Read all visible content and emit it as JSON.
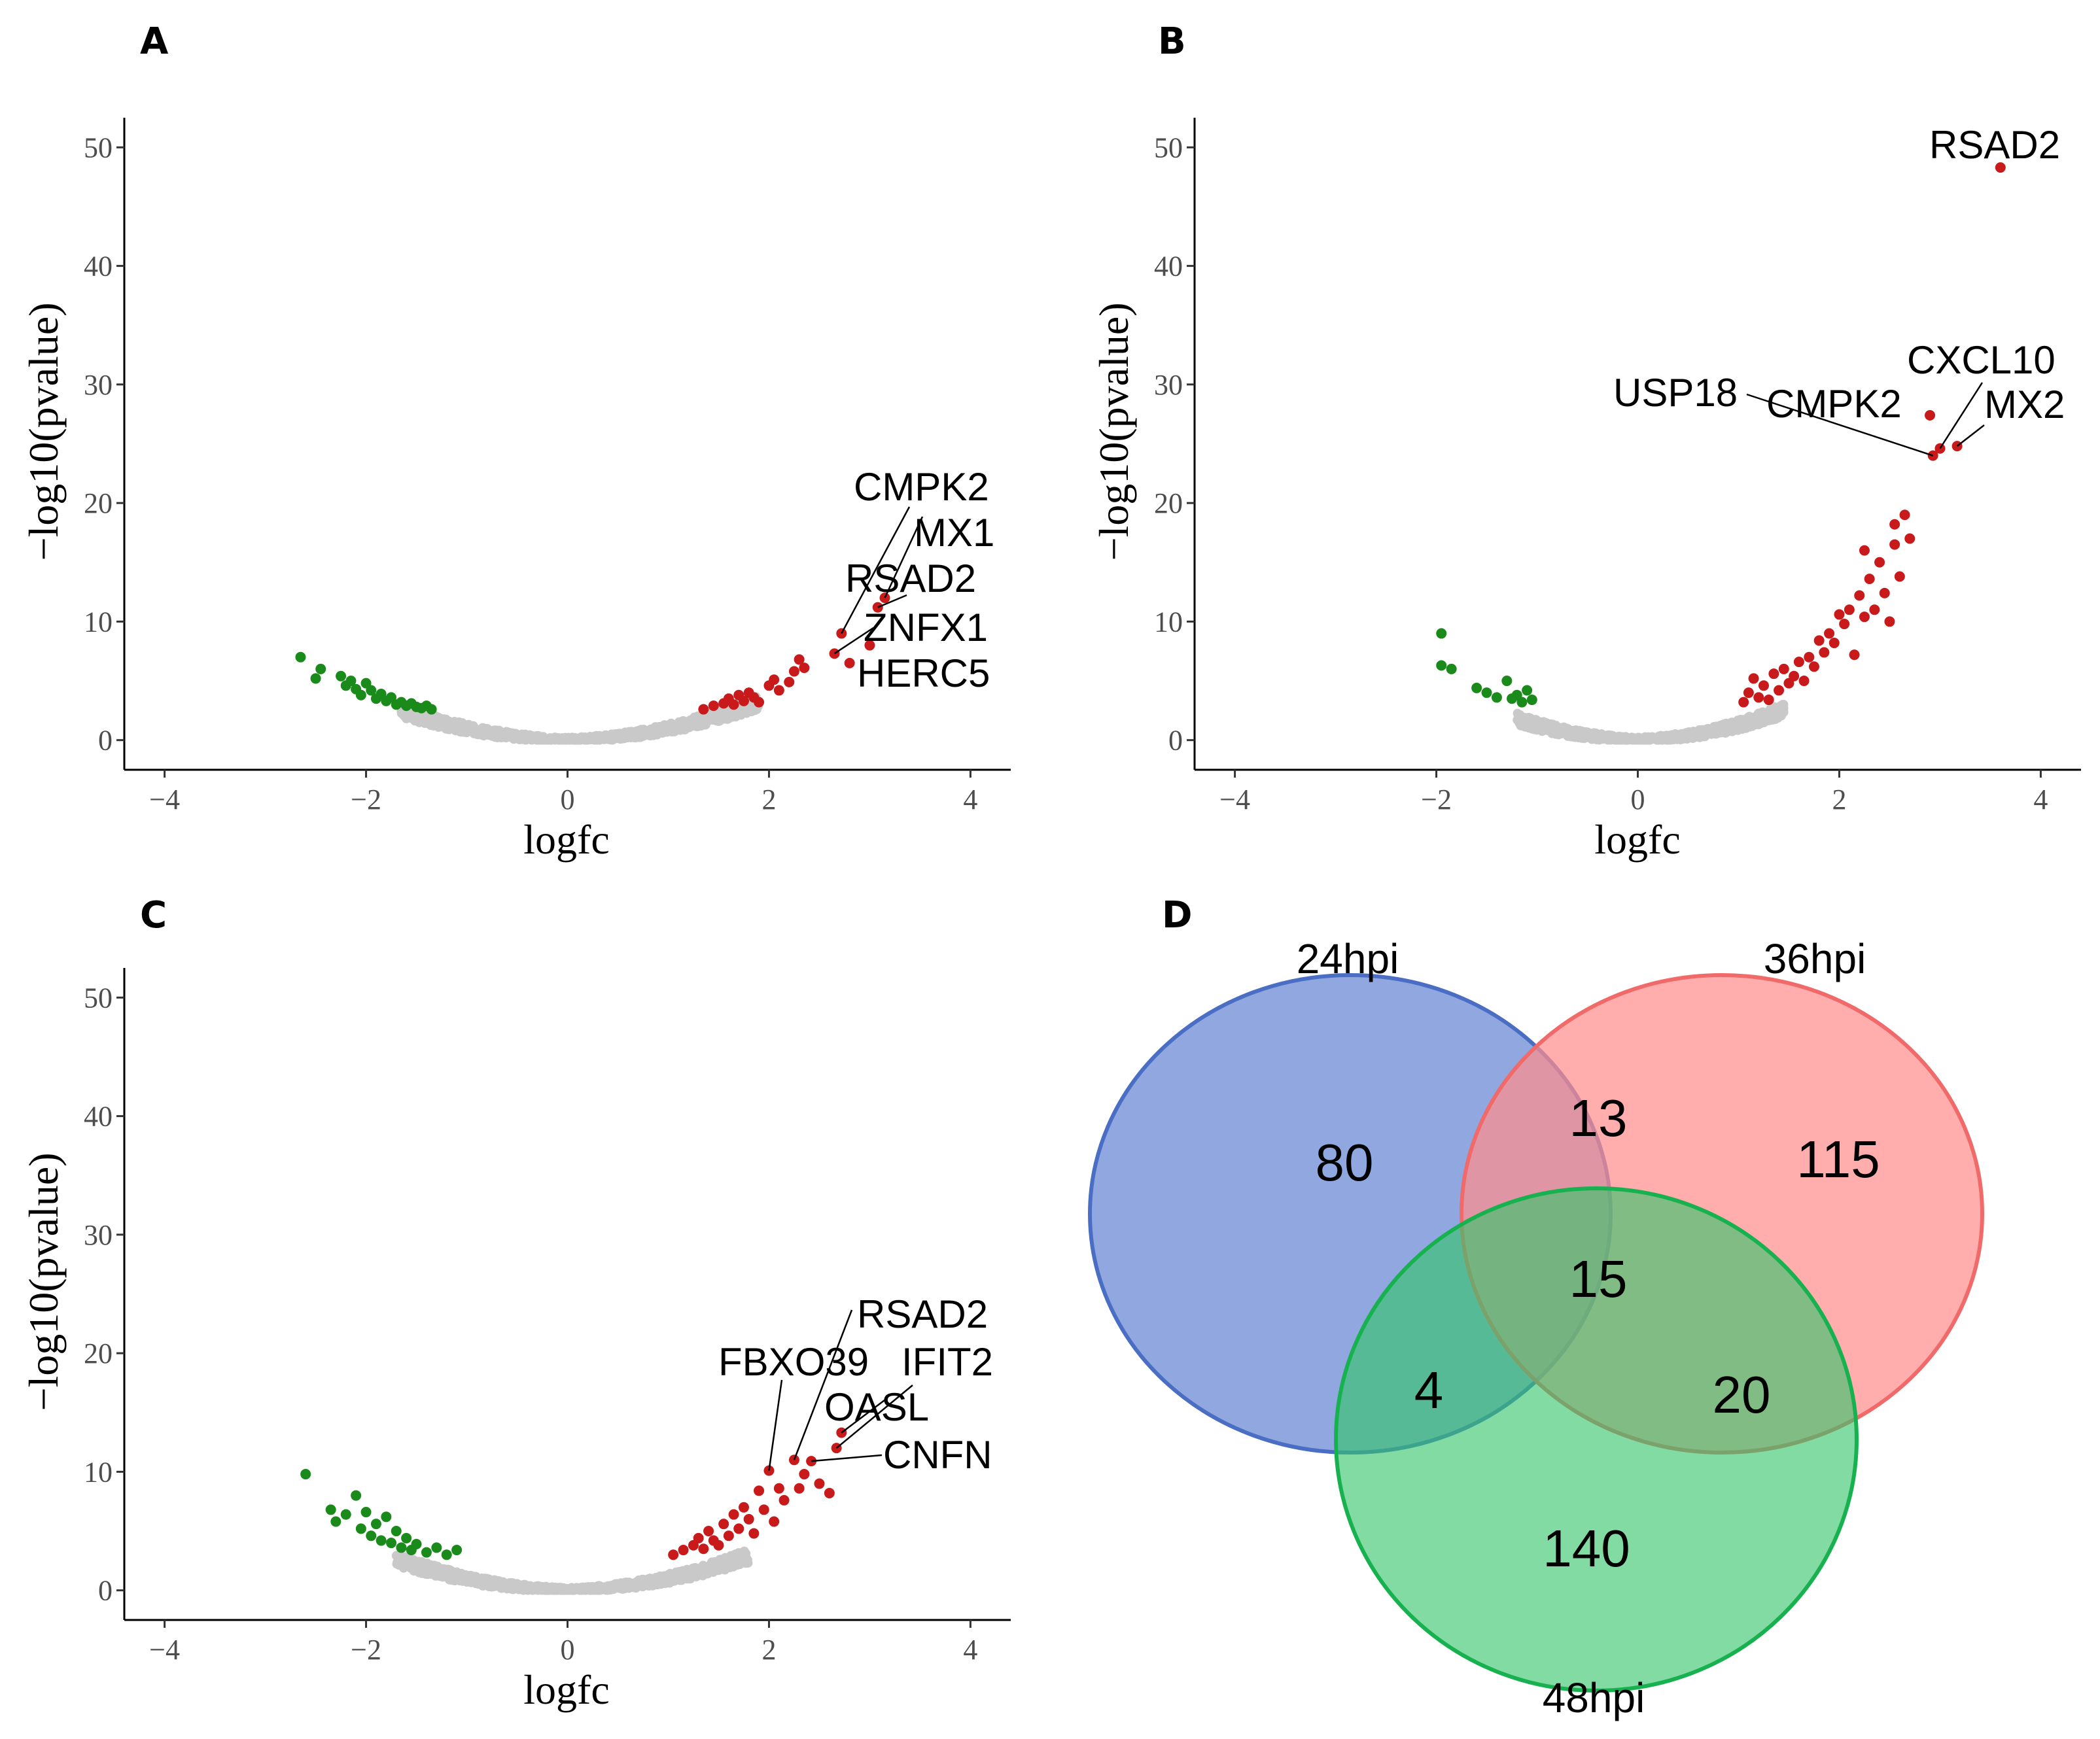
{
  "chart_data": [
    {
      "panel": "A",
      "type": "scatter",
      "title": "",
      "xlabel": "logfc",
      "ylabel": "−log10(pvalue)",
      "xlim": [
        -4.4,
        4.4
      ],
      "ylim": [
        -2.5,
        52.5
      ],
      "xticks": [
        -4,
        -2,
        0,
        2,
        4
      ],
      "yticks": [
        0,
        10,
        20,
        30,
        40,
        50
      ],
      "xtick_labels": [
        "−4",
        "−2",
        "0",
        "2",
        "4"
      ],
      "ytick_labels": [
        "0",
        "10",
        "20",
        "30",
        "40",
        "50"
      ],
      "cloud": {
        "xmin": -1.65,
        "xmax": 1.9,
        "k": 1.5,
        "spread": 0.8
      },
      "series": [
        {
          "name": "down",
          "color": "#1a8a1a",
          "points": [
            [
              -2.65,
              7.0
            ],
            [
              -2.5,
              5.2
            ],
            [
              -2.45,
              6.0
            ],
            [
              -2.25,
              5.4
            ],
            [
              -2.2,
              4.6
            ],
            [
              -2.15,
              5.0
            ],
            [
              -2.1,
              4.3
            ],
            [
              -2.05,
              3.8
            ],
            [
              -2.0,
              4.8
            ],
            [
              -1.95,
              4.2
            ],
            [
              -1.9,
              3.5
            ],
            [
              -1.85,
              3.9
            ],
            [
              -1.8,
              3.3
            ],
            [
              -1.75,
              3.6
            ],
            [
              -1.7,
              3.0
            ],
            [
              -1.65,
              3.2
            ],
            [
              -1.6,
              2.9
            ],
            [
              -1.55,
              3.1
            ],
            [
              -1.5,
              2.8
            ],
            [
              -1.45,
              2.7
            ],
            [
              -1.4,
              2.9
            ],
            [
              -1.35,
              2.6
            ]
          ]
        },
        {
          "name": "up",
          "color": "#c8191b",
          "points": [
            [
              1.35,
              2.6
            ],
            [
              1.45,
              2.9
            ],
            [
              1.55,
              3.1
            ],
            [
              1.6,
              3.5
            ],
            [
              1.65,
              3.0
            ],
            [
              1.7,
              3.8
            ],
            [
              1.75,
              3.3
            ],
            [
              1.8,
              4.0
            ],
            [
              1.85,
              3.6
            ],
            [
              1.9,
              3.2
            ],
            [
              2.0,
              4.6
            ],
            [
              2.05,
              5.1
            ],
            [
              2.1,
              4.2
            ],
            [
              2.2,
              4.9
            ],
            [
              2.25,
              5.8
            ],
            [
              2.3,
              6.8
            ],
            [
              2.35,
              6.1
            ],
            [
              2.65,
              7.3
            ],
            [
              2.72,
              9.0
            ],
            [
              2.8,
              6.5
            ],
            [
              3.0,
              8.0
            ],
            [
              3.08,
              11.2
            ],
            [
              3.15,
              12.0
            ]
          ]
        }
      ],
      "annotations": [
        {
          "label": "CMPK2",
          "x": 2.72,
          "y": 9.0
        },
        {
          "label": "MX1",
          "x": 3.15,
          "y": 12.0
        },
        {
          "label": "RSAD2",
          "x": 3.08,
          "y": 11.2
        },
        {
          "label": "ZNFX1",
          "x": 2.65,
          "y": 7.3
        },
        {
          "label": "HERC5",
          "x": 3.0,
          "y": 8.0
        }
      ]
    },
    {
      "panel": "B",
      "type": "scatter",
      "title": "",
      "xlabel": "logfc",
      "ylabel": "−log10(pvalue)",
      "xlim": [
        -4.4,
        4.4
      ],
      "ylim": [
        -2.5,
        52.5
      ],
      "xticks": [
        -4,
        -2,
        0,
        2,
        4
      ],
      "yticks": [
        0,
        10,
        20,
        30,
        40,
        50
      ],
      "xtick_labels": [
        "−4",
        "−2",
        "0",
        "2",
        "4"
      ],
      "ytick_labels": [
        "0",
        "10",
        "20",
        "30",
        "40",
        "50"
      ],
      "cloud": {
        "xmin": -1.2,
        "xmax": 1.45,
        "k": 2.0,
        "spread": 0.9
      },
      "series": [
        {
          "name": "down",
          "color": "#1a8a1a",
          "points": [
            [
              -1.95,
              9.0
            ],
            [
              -1.95,
              6.3
            ],
            [
              -1.85,
              6.0
            ],
            [
              -1.6,
              4.4
            ],
            [
              -1.5,
              4.0
            ],
            [
              -1.4,
              3.6
            ],
            [
              -1.3,
              5.0
            ],
            [
              -1.25,
              3.5
            ],
            [
              -1.2,
              3.8
            ],
            [
              -1.15,
              3.2
            ],
            [
              -1.1,
              4.2
            ],
            [
              -1.05,
              3.4
            ]
          ]
        },
        {
          "name": "up",
          "color": "#c8191b",
          "points": [
            [
              1.05,
              3.2
            ],
            [
              1.1,
              4.0
            ],
            [
              1.15,
              5.2
            ],
            [
              1.2,
              3.6
            ],
            [
              1.25,
              4.6
            ],
            [
              1.3,
              3.4
            ],
            [
              1.35,
              5.6
            ],
            [
              1.4,
              4.2
            ],
            [
              1.45,
              6.0
            ],
            [
              1.5,
              4.8
            ],
            [
              1.55,
              5.4
            ],
            [
              1.6,
              6.6
            ],
            [
              1.65,
              5.0
            ],
            [
              1.7,
              7.0
            ],
            [
              1.75,
              6.2
            ],
            [
              1.8,
              8.4
            ],
            [
              1.85,
              7.4
            ],
            [
              1.9,
              9.0
            ],
            [
              1.95,
              8.2
            ],
            [
              2.0,
              10.6
            ],
            [
              2.05,
              9.8
            ],
            [
              2.1,
              11.0
            ],
            [
              2.15,
              7.2
            ],
            [
              2.2,
              12.2
            ],
            [
              2.25,
              10.4
            ],
            [
              2.3,
              13.6
            ],
            [
              2.35,
              11.0
            ],
            [
              2.4,
              15.0
            ],
            [
              2.45,
              12.4
            ],
            [
              2.5,
              10.0
            ],
            [
              2.55,
              16.5
            ],
            [
              2.6,
              13.8
            ],
            [
              2.65,
              19.0
            ],
            [
              2.55,
              18.2
            ],
            [
              2.25,
              16.0
            ],
            [
              2.7,
              17.0
            ],
            [
              2.9,
              27.4
            ],
            [
              2.93,
              24.0
            ],
            [
              3.0,
              24.6
            ],
            [
              3.17,
              24.8
            ],
            [
              3.6,
              48.3
            ]
          ]
        }
      ],
      "annotations": [
        {
          "label": "RSAD2",
          "x": 3.6,
          "y": 48.3
        },
        {
          "label": "CXCL10",
          "x": 3.0,
          "y": 24.6
        },
        {
          "label": "USP18",
          "x": 2.93,
          "y": 24.0
        },
        {
          "label": "CMPK2",
          "x": 2.9,
          "y": 27.4
        },
        {
          "label": "MX2",
          "x": 3.17,
          "y": 24.8
        }
      ]
    },
    {
      "panel": "C",
      "type": "scatter",
      "title": "",
      "xlabel": "logfc",
      "ylabel": "−log10(pvalue)",
      "xlim": [
        -4.4,
        4.4
      ],
      "ylim": [
        -2.5,
        52.5
      ],
      "xticks": [
        -4,
        -2,
        0,
        2,
        4
      ],
      "yticks": [
        0,
        10,
        20,
        30,
        40,
        50
      ],
      "xtick_labels": [
        "−4",
        "−2",
        "0",
        "2",
        "4"
      ],
      "ytick_labels": [
        "0",
        "10",
        "20",
        "30",
        "40",
        "50"
      ],
      "cloud": {
        "xmin": -1.7,
        "xmax": 1.8,
        "k": 1.5,
        "spread": 0.8
      },
      "series": [
        {
          "name": "down",
          "color": "#1a8a1a",
          "points": [
            [
              -2.6,
              9.8
            ],
            [
              -2.35,
              6.8
            ],
            [
              -2.3,
              5.8
            ],
            [
              -2.2,
              6.4
            ],
            [
              -2.1,
              8.0
            ],
            [
              -2.05,
              5.2
            ],
            [
              -2.0,
              6.6
            ],
            [
              -1.95,
              4.6
            ],
            [
              -1.9,
              5.6
            ],
            [
              -1.85,
              4.2
            ],
            [
              -1.8,
              6.2
            ],
            [
              -1.75,
              4.0
            ],
            [
              -1.7,
              5.0
            ],
            [
              -1.65,
              3.6
            ],
            [
              -1.6,
              4.4
            ],
            [
              -1.55,
              3.4
            ],
            [
              -1.5,
              3.9
            ],
            [
              -1.4,
              3.2
            ],
            [
              -1.3,
              3.6
            ],
            [
              -1.2,
              3.0
            ],
            [
              -1.1,
              3.4
            ]
          ]
        },
        {
          "name": "up",
          "color": "#c8191b",
          "points": [
            [
              1.05,
              3.0
            ],
            [
              1.15,
              3.4
            ],
            [
              1.25,
              3.8
            ],
            [
              1.3,
              4.4
            ],
            [
              1.35,
              3.5
            ],
            [
              1.4,
              5.0
            ],
            [
              1.45,
              4.2
            ],
            [
              1.5,
              3.8
            ],
            [
              1.55,
              5.6
            ],
            [
              1.6,
              4.6
            ],
            [
              1.65,
              6.4
            ],
            [
              1.7,
              5.2
            ],
            [
              1.75,
              7.0
            ],
            [
              1.8,
              6.0
            ],
            [
              1.85,
              4.8
            ],
            [
              1.9,
              8.4
            ],
            [
              1.95,
              6.8
            ],
            [
              2.0,
              10.1
            ],
            [
              2.05,
              5.8
            ],
            [
              2.1,
              8.6
            ],
            [
              2.15,
              7.6
            ],
            [
              2.25,
              11.0
            ],
            [
              2.3,
              8.6
            ],
            [
              2.35,
              9.8
            ],
            [
              2.42,
              10.9
            ],
            [
              2.5,
              9.0
            ],
            [
              2.6,
              8.2
            ],
            [
              2.67,
              12.0
            ],
            [
              2.72,
              13.3
            ]
          ]
        }
      ],
      "annotations": [
        {
          "label": "RSAD2",
          "x": 2.25,
          "y": 11.0
        },
        {
          "label": "FBXO39",
          "x": 2.0,
          "y": 10.1
        },
        {
          "label": "IFIT2",
          "x": 2.67,
          "y": 12.0
        },
        {
          "label": "OASL",
          "x": 2.72,
          "y": 13.3
        },
        {
          "label": "CNFN",
          "x": 2.42,
          "y": 10.9
        }
      ]
    },
    {
      "panel": "D",
      "type": "venn",
      "sets": [
        {
          "name": "24hpi",
          "color": "#4a6ec4",
          "fill": "#8aa3dd"
        },
        {
          "name": "36hpi",
          "color": "#f06a6a",
          "fill": "#ff8d8d"
        },
        {
          "name": "48hpi",
          "color": "#17b24f",
          "fill": "#66d18a"
        }
      ],
      "regions": [
        {
          "sets": [
            "24hpi"
          ],
          "count": "80"
        },
        {
          "sets": [
            "36hpi"
          ],
          "count": "115"
        },
        {
          "sets": [
            "48hpi"
          ],
          "count": "140"
        },
        {
          "sets": [
            "24hpi",
            "36hpi"
          ],
          "count": "13"
        },
        {
          "sets": [
            "24hpi",
            "48hpi"
          ],
          "count": "4"
        },
        {
          "sets": [
            "36hpi",
            "48hpi"
          ],
          "count": "20"
        },
        {
          "sets": [
            "24hpi",
            "36hpi",
            "48hpi"
          ],
          "count": "15"
        }
      ]
    }
  ]
}
